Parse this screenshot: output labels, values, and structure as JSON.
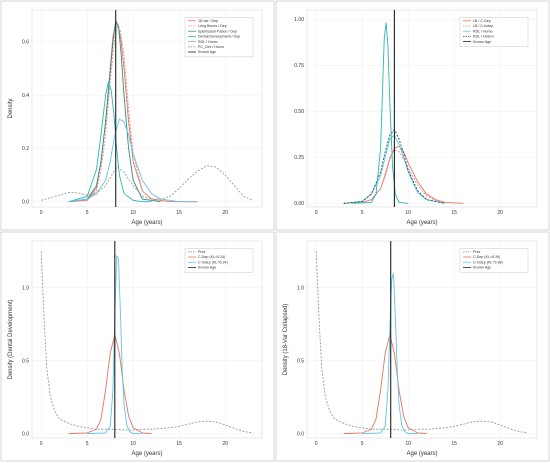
{
  "colors": {
    "red": "#e8735f",
    "teal": "#2ab7b1",
    "lightblue": "#63c4e8",
    "gray": "#9a9a9a",
    "black": "#222222",
    "pink": "#e58c8c",
    "darkteal": "#2f8f86",
    "navy": "#1f4e5f",
    "panel_border": "#cccccc"
  },
  "chart_data": [
    {
      "type": "line",
      "xlabel": "Age (years)",
      "ylabel": "Density",
      "xlim": [
        -1,
        24
      ],
      "ylim": [
        -0.02,
        0.72
      ],
      "xticks": [
        "0",
        "5",
        "10",
        "15",
        "20"
      ],
      "yticks": [
        "0.0",
        "0.2",
        "0.4",
        "0.6"
      ],
      "known_age": 8.1,
      "legend": "top-right",
      "series": [
        {
          "name": "18-Var / Dep",
          "color": "red",
          "dash": "",
          "x": [
            3,
            5,
            6,
            6.5,
            7,
            7.5,
            7.8,
            8.1,
            8.4,
            8.7,
            9,
            9.5,
            10,
            11,
            12,
            14,
            17
          ],
          "y": [
            0,
            0.005,
            0.05,
            0.15,
            0.3,
            0.5,
            0.62,
            0.67,
            0.66,
            0.6,
            0.5,
            0.3,
            0.15,
            0.04,
            0.01,
            0,
            0
          ]
        },
        {
          "name": "Long Bones / Dep",
          "color": "pink",
          "dash": "2,1.5",
          "x": [
            3,
            5,
            6,
            6.5,
            7,
            7.5,
            8,
            8.3,
            8.6,
            9,
            9.5,
            10,
            11,
            12,
            14
          ],
          "y": [
            0,
            0.005,
            0.04,
            0.12,
            0.25,
            0.45,
            0.62,
            0.66,
            0.64,
            0.55,
            0.35,
            0.18,
            0.04,
            0.01,
            0
          ]
        },
        {
          "name": "Epiphyseal Fusion / Dep",
          "color": "darkteal",
          "dash": "",
          "x": [
            3,
            5,
            6,
            6.5,
            7,
            7.4,
            7.8,
            8.1,
            8.4,
            8.7,
            9,
            9.5,
            10,
            11,
            13
          ],
          "y": [
            0,
            0.01,
            0.06,
            0.15,
            0.3,
            0.45,
            0.6,
            0.68,
            0.66,
            0.55,
            0.4,
            0.2,
            0.08,
            0.01,
            0
          ]
        },
        {
          "name": "Dental Development / Dep",
          "color": "teal",
          "dash": "",
          "x": [
            3,
            5,
            6,
            6.5,
            7,
            7.3,
            7.6,
            7.9,
            8.2,
            8.5,
            9,
            10,
            11,
            12
          ],
          "y": [
            0,
            0.02,
            0.12,
            0.25,
            0.4,
            0.45,
            0.42,
            0.33,
            0.2,
            0.1,
            0.03,
            0.005,
            0,
            0
          ]
        },
        {
          "name": "RDL / Homo",
          "color": "lightblue",
          "dash": "",
          "x": [
            3,
            5,
            6,
            7,
            7.5,
            8,
            8.5,
            9,
            9.5,
            10,
            11,
            12,
            13,
            15,
            17
          ],
          "y": [
            0,
            0.01,
            0.03,
            0.08,
            0.15,
            0.25,
            0.31,
            0.3,
            0.25,
            0.18,
            0.08,
            0.03,
            0.01,
            0,
            0
          ]
        },
        {
          "name": "PC_Dex / Homo",
          "color": "gray",
          "dash": "2,1.5",
          "x": [
            0,
            1,
            2,
            3,
            4,
            5,
            6,
            7,
            8,
            8.3,
            9,
            10,
            11,
            12,
            13,
            14,
            15,
            16,
            17,
            18,
            19,
            20,
            21,
            22,
            23
          ],
          "y": [
            0.005,
            0.015,
            0.025,
            0.035,
            0.033,
            0.025,
            0.03,
            0.06,
            0.12,
            0.13,
            0.11,
            0.06,
            0.02,
            0.01,
            0.01,
            0.02,
            0.05,
            0.085,
            0.115,
            0.135,
            0.13,
            0.1,
            0.06,
            0.02,
            0.005
          ]
        },
        {
          "name": "Known Age",
          "color": "black",
          "dash": "",
          "x": [],
          "y": []
        }
      ]
    },
    {
      "type": "line",
      "xlabel": "Age (years)",
      "ylabel": "",
      "xlim": [
        -1,
        24
      ],
      "ylim": [
        -0.02,
        1.05
      ],
      "xticks": [
        "0",
        "5",
        "10",
        "15",
        "20"
      ],
      "yticks": [
        "0.00",
        "0.25",
        "0.50",
        "0.75",
        "1.00"
      ],
      "known_age": 8.5,
      "legend": "top-right",
      "series": [
        {
          "name": "LB / C-Dep",
          "color": "red",
          "dash": "",
          "x": [
            3,
            5,
            6,
            7,
            7.5,
            8,
            8.5,
            9,
            9.5,
            10,
            11,
            12,
            13,
            14,
            16
          ],
          "y": [
            0,
            0.005,
            0.02,
            0.08,
            0.15,
            0.24,
            0.3,
            0.31,
            0.28,
            0.22,
            0.12,
            0.05,
            0.02,
            0.005,
            0
          ]
        },
        {
          "name": "LB / C-Indep",
          "color": "pink",
          "dash": "2,1.5",
          "x": [
            3,
            5,
            6,
            7,
            7.5,
            8,
            8.5,
            9,
            9.5,
            10,
            11,
            12,
            13,
            14,
            16
          ],
          "y": [
            0,
            0.005,
            0.02,
            0.08,
            0.16,
            0.25,
            0.29,
            0.28,
            0.24,
            0.19,
            0.1,
            0.04,
            0.015,
            0.005,
            0
          ]
        },
        {
          "name": "RDL / Homo",
          "color": "lightblue",
          "dash": "",
          "x": [
            3,
            5,
            6,
            7,
            7.5,
            8,
            8.5,
            9,
            9.5,
            10,
            11,
            12,
            14
          ],
          "y": [
            0,
            0.01,
            0.05,
            0.15,
            0.25,
            0.35,
            0.37,
            0.32,
            0.25,
            0.17,
            0.06,
            0.02,
            0
          ]
        },
        {
          "name": "RDL / Hetero",
          "color": "navy",
          "dash": "2,1.5",
          "x": [
            3,
            5,
            6,
            7,
            7.5,
            8,
            8.5,
            9,
            9.5,
            10,
            11,
            12,
            14
          ],
          "y": [
            0,
            0.01,
            0.05,
            0.17,
            0.28,
            0.37,
            0.4,
            0.35,
            0.27,
            0.18,
            0.07,
            0.02,
            0
          ]
        },
        {
          "name": "",
          "color": "teal",
          "dash": "",
          "x": [
            4,
            6,
            6.5,
            7,
            7.2,
            7.4,
            7.6,
            7.8,
            8,
            8.3,
            8.6,
            9,
            10
          ],
          "y": [
            0,
            0.005,
            0.05,
            0.3,
            0.6,
            0.9,
            0.98,
            0.85,
            0.55,
            0.2,
            0.05,
            0.005,
            0
          ]
        },
        {
          "name": "Known Age",
          "color": "black",
          "dash": "",
          "x": [],
          "y": []
        }
      ]
    },
    {
      "type": "line",
      "xlabel": "Age (years)",
      "ylabel": "Density (Dental Development)",
      "xlim": [
        -1,
        24
      ],
      "ylim": [
        -0.03,
        1.32
      ],
      "xticks": [
        "0",
        "5",
        "10",
        "15",
        "20"
      ],
      "yticks": [
        "0.0",
        "0.5",
        "1.0"
      ],
      "known_age": 8.0,
      "legend": "top-right",
      "series": [
        {
          "name": "Prior",
          "color": "gray",
          "dash": "2,1.5",
          "x": [
            0,
            0.3,
            0.6,
            1,
            1.5,
            2,
            3,
            4,
            5,
            6,
            7,
            8,
            9,
            10,
            11,
            12,
            13,
            14,
            15,
            16,
            17,
            18,
            19,
            20,
            21,
            22,
            23
          ],
          "y": [
            1.25,
            0.8,
            0.45,
            0.25,
            0.15,
            0.1,
            0.07,
            0.05,
            0.04,
            0.03,
            0.03,
            0.03,
            0.025,
            0.025,
            0.03,
            0.03,
            0.035,
            0.04,
            0.05,
            0.065,
            0.08,
            0.085,
            0.08,
            0.06,
            0.035,
            0.015,
            0.005
          ]
        },
        {
          "name": "C-Dep (KL=5.24)",
          "color": "red",
          "dash": "",
          "x": [
            3,
            5,
            6,
            6.5,
            7,
            7.5,
            8,
            8.5,
            9,
            9.5,
            10,
            11,
            12
          ],
          "y": [
            0,
            0.005,
            0.03,
            0.1,
            0.3,
            0.55,
            0.68,
            0.55,
            0.3,
            0.12,
            0.04,
            0.005,
            0
          ]
        },
        {
          "name": "C-Indep (KL=6.24)",
          "color": "lightblue",
          "dash": "",
          "x": [
            5,
            7,
            7.5,
            7.8,
            8,
            8.2,
            8.4,
            8.6,
            8.8,
            9,
            9.3,
            9.6,
            10,
            11
          ],
          "y": [
            0,
            0.005,
            0.05,
            0.3,
            0.8,
            1.22,
            1.2,
            0.85,
            0.45,
            0.2,
            0.06,
            0.015,
            0,
            0
          ]
        },
        {
          "name": "Known Age",
          "color": "black",
          "dash": "",
          "x": [],
          "y": []
        }
      ]
    },
    {
      "type": "line",
      "xlabel": "Age (years)",
      "ylabel": "Density (18-Var Collapsed)",
      "xlim": [
        -1,
        24
      ],
      "ylim": [
        -0.03,
        1.32
      ],
      "xticks": [
        "0",
        "5",
        "10",
        "15",
        "20"
      ],
      "yticks": [
        "0.0",
        "0.5",
        "1.0"
      ],
      "known_age": 8.1,
      "legend": "top-right",
      "series": [
        {
          "name": "Prior",
          "color": "gray",
          "dash": "2,1.5",
          "x": [
            0,
            0.3,
            0.6,
            1,
            1.5,
            2,
            3,
            4,
            5,
            6,
            7,
            8,
            9,
            10,
            11,
            12,
            13,
            14,
            15,
            16,
            17,
            18,
            19,
            20,
            21,
            22,
            23
          ],
          "y": [
            1.25,
            0.8,
            0.45,
            0.25,
            0.15,
            0.1,
            0.07,
            0.05,
            0.04,
            0.03,
            0.03,
            0.03,
            0.025,
            0.025,
            0.03,
            0.03,
            0.035,
            0.04,
            0.05,
            0.065,
            0.08,
            0.085,
            0.08,
            0.06,
            0.035,
            0.015,
            0.005
          ]
        },
        {
          "name": "C-Dep (KL=5.39)",
          "color": "red",
          "dash": "",
          "x": [
            3,
            5,
            6,
            6.5,
            7,
            7.5,
            8,
            8.5,
            9,
            9.5,
            10,
            11,
            12
          ],
          "y": [
            0,
            0.005,
            0.03,
            0.1,
            0.3,
            0.55,
            0.68,
            0.55,
            0.3,
            0.12,
            0.04,
            0.005,
            0
          ]
        },
        {
          "name": "C-Indep (KL=5.98)",
          "color": "lightblue",
          "dash": "",
          "x": [
            5,
            7,
            7.5,
            7.8,
            8,
            8.2,
            8.4,
            8.6,
            8.8,
            9,
            9.3,
            9.6,
            10,
            11
          ],
          "y": [
            0,
            0.005,
            0.05,
            0.3,
            0.7,
            1.05,
            1.1,
            0.8,
            0.45,
            0.2,
            0.06,
            0.015,
            0,
            0
          ]
        },
        {
          "name": "Known Age",
          "color": "black",
          "dash": "",
          "x": [],
          "y": []
        }
      ]
    }
  ]
}
